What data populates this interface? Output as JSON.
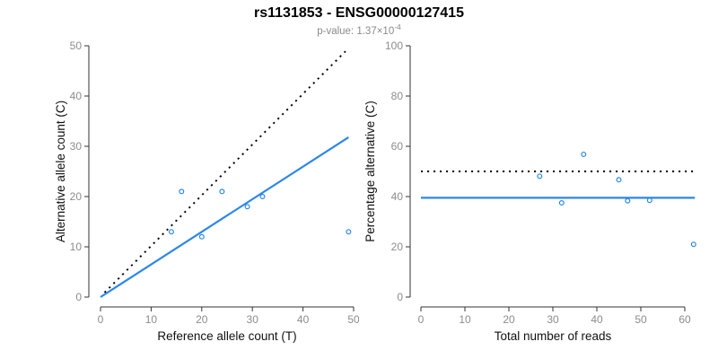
{
  "header": {
    "title": "rs1131853 - ENSG00000127415",
    "pvalue_label": "p-value: 1.37×10",
    "pvalue_exponent": "-4"
  },
  "colors": {
    "accent_blue": "#2b87e8",
    "dotted_line_black": "#000000",
    "axis_line": "#333333",
    "tick_label_gray": "#8c8c8c",
    "axis_title_black": "#111111",
    "subtitle_gray": "#8a8a8a"
  },
  "chart_data": [
    {
      "type": "scatter",
      "name": "allele-count-scatter",
      "xlabel": "Reference allele count (T)",
      "ylabel": "Alternative allele count (C)",
      "xlim": [
        0,
        50
      ],
      "ylim": [
        0,
        50
      ],
      "xticks": [
        0,
        10,
        20,
        30,
        40,
        50
      ],
      "yticks": [
        0,
        10,
        20,
        30,
        40,
        50
      ],
      "grid": false,
      "legend": "none",
      "points": [
        [
          14,
          13
        ],
        [
          16,
          21
        ],
        [
          20,
          12
        ],
        [
          24,
          21
        ],
        [
          29,
          18
        ],
        [
          32,
          20
        ],
        [
          49,
          13
        ]
      ],
      "lines": [
        {
          "name": "identity-line",
          "style": "dotted",
          "color": "#000000",
          "x1": 0.8,
          "y1": 0.9,
          "x2": 48.4,
          "y2": 48.9
        },
        {
          "name": "fit-line",
          "style": "solid",
          "color": "#2b87e8",
          "x1": 0,
          "y1": 0,
          "x2": 49,
          "y2": 31.8
        }
      ]
    },
    {
      "type": "scatter",
      "name": "percentage-reads-scatter",
      "xlabel": "Total number of reads",
      "ylabel": "Percentage alternative (C)",
      "xlim": [
        0,
        60
      ],
      "ylim": [
        0,
        100
      ],
      "xticks": [
        0,
        10,
        20,
        30,
        40,
        50,
        60
      ],
      "yticks": [
        0,
        20,
        40,
        60,
        80,
        100
      ],
      "grid": false,
      "legend": "none",
      "points": [
        [
          27,
          48.1
        ],
        [
          32,
          37.5
        ],
        [
          37,
          56.8
        ],
        [
          45,
          46.7
        ],
        [
          47,
          38.3
        ],
        [
          52,
          38.5
        ],
        [
          62,
          21
        ]
      ],
      "lines": [
        {
          "name": "fifty-percent-line",
          "style": "dotted",
          "color": "#000000",
          "x1": 0,
          "y1": 50,
          "x2": 62.3,
          "y2": 50
        },
        {
          "name": "mean-percentage-line",
          "style": "solid",
          "color": "#2b87e8",
          "x1": 0,
          "y1": 39.5,
          "x2": 62.3,
          "y2": 39.5
        }
      ]
    }
  ]
}
